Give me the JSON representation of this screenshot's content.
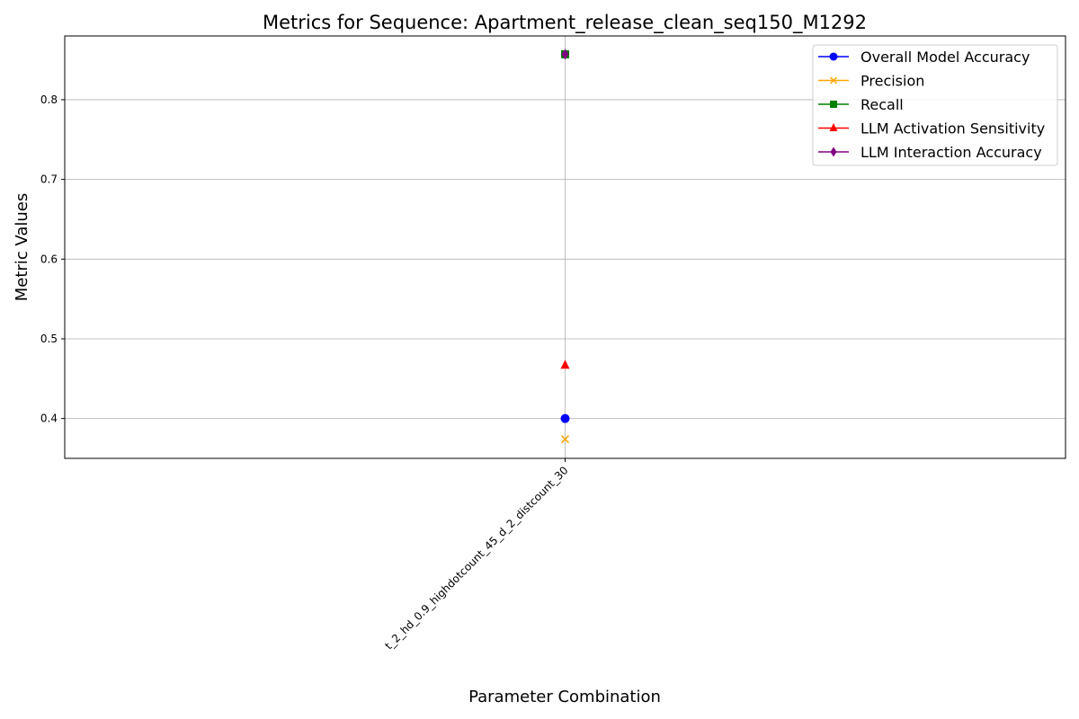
{
  "chart_data": {
    "type": "line",
    "title": "Metrics for Sequence: Apartment_release_clean_seq150_M1292",
    "xlabel": "Parameter Combination",
    "ylabel": "Metric Values",
    "categories": [
      "t_2_hd_0.9_highdotcount_45_d_2_distcount_30"
    ],
    "ylim": [
      0.35,
      0.88
    ],
    "yticks": [
      0.4,
      0.5,
      0.6,
      0.7,
      0.8
    ],
    "grid": true,
    "legend_position": "top-right",
    "series": [
      {
        "name": "Overall Model Accuracy",
        "values": [
          0.4
        ],
        "color": "#0000ff",
        "marker": "circle"
      },
      {
        "name": "Precision",
        "values": [
          0.374
        ],
        "color": "#ffa500",
        "marker": "x"
      },
      {
        "name": "Recall",
        "values": [
          0.857
        ],
        "color": "#008000",
        "marker": "square"
      },
      {
        "name": "LLM Activation Sensitivity",
        "values": [
          0.467
        ],
        "color": "#ff0000",
        "marker": "triangle"
      },
      {
        "name": "LLM Interaction Accuracy",
        "values": [
          0.857
        ],
        "color": "#800080",
        "marker": "diamond"
      }
    ]
  }
}
